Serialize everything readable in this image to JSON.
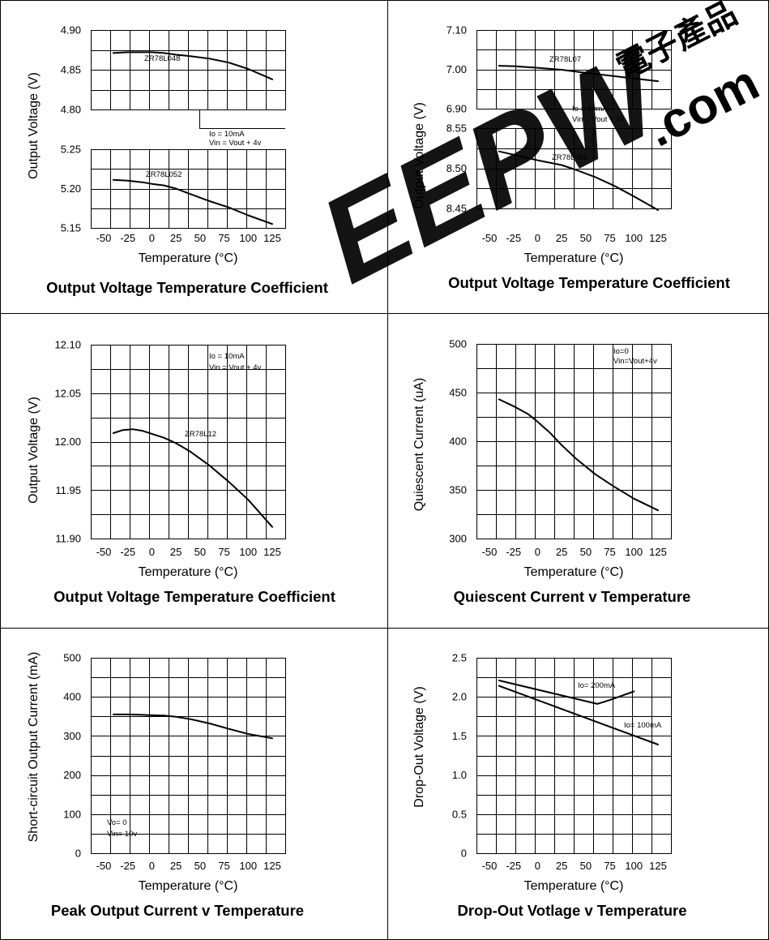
{
  "watermark": {
    "text": "EEPW",
    "suffix": ".com",
    "chinese": "電子產品",
    "color": "#e31b23"
  },
  "chart_data": [
    {
      "type": "line",
      "title": "Output Voltage Temperature Coefficient",
      "xlabel": "Temperature (°C)",
      "ylabel": "Output Voltage (V)",
      "x_ticks": [
        "-50",
        "-25",
        "0",
        "25",
        "50",
        "75",
        "100",
        "125"
      ],
      "xlim": [
        -50,
        125
      ],
      "grid": true,
      "panels": [
        {
          "ylim": [
            4.8,
            4.9
          ],
          "y_ticks": [
            "4.90",
            "4.85",
            "4.80"
          ],
          "series": [
            {
              "name": "ZR78L048",
              "color": "#000000",
              "x": [
                -40,
                -25,
                -10,
                0,
                12.5,
                25,
                40,
                60,
                80,
                100,
                125
              ],
              "y": [
                4.871,
                4.872,
                4.872,
                4.872,
                4.871,
                4.869,
                4.867,
                4.864,
                4.859,
                4.851,
                4.838
              ]
            }
          ],
          "annotations": [
            "Io = 10mA",
            "Vin = Vout + 4v"
          ]
        },
        {
          "ylim": [
            5.15,
            5.25
          ],
          "y_ticks": [
            "5.25",
            "5.20",
            "5.15"
          ],
          "series": [
            {
              "name": "ZR78L052",
              "color": "#000000",
              "x": [
                -40,
                -25,
                -10,
                0,
                12.5,
                25,
                40,
                60,
                80,
                100,
                125
              ],
              "y": [
                5.211,
                5.21,
                5.208,
                5.206,
                5.204,
                5.2,
                5.193,
                5.184,
                5.176,
                5.166,
                5.155
              ]
            }
          ]
        }
      ]
    },
    {
      "type": "line",
      "title": "Output Voltage Temperature Coefficient",
      "xlabel": "Temperature (°C)",
      "ylabel": "Output Voltage (V)",
      "x_ticks": [
        "-50",
        "-25",
        "0",
        "25",
        "50",
        "75",
        "100",
        "125"
      ],
      "xlim": [
        -50,
        125
      ],
      "grid": true,
      "panels": [
        {
          "ylim": [
            6.9,
            7.1
          ],
          "y_ticks": [
            "7.10",
            "7.00",
            "6.90"
          ],
          "series": [
            {
              "name": "ZR78L07",
              "color": "#000000",
              "x": [
                -40,
                -25,
                0,
                25,
                50,
                75,
                100,
                125
              ],
              "y": [
                7.009,
                7.008,
                7.004,
                6.999,
                6.991,
                6.984,
                6.977,
                6.97
              ]
            }
          ],
          "annotations": [
            "Io = 10mA",
            "Vin = Vout + 4v"
          ]
        },
        {
          "ylim": [
            8.45,
            8.55
          ],
          "y_ticks": [
            "8.55",
            "8.50",
            "8.45"
          ],
          "series": [
            {
              "name": "ZR78L085",
              "color": "#000000",
              "x": [
                -40,
                -25,
                0,
                25,
                40,
                60,
                80,
                100,
                125
              ],
              "y": [
                8.521,
                8.517,
                8.51,
                8.504,
                8.498,
                8.489,
                8.478,
                8.465,
                8.448
              ]
            }
          ]
        }
      ]
    },
    {
      "type": "line",
      "title": "Output Voltage Temperature Coefficient",
      "xlabel": "Temperature (°C)",
      "ylabel": "Output Voltage (V)",
      "x_ticks": [
        "-50",
        "-25",
        "0",
        "25",
        "50",
        "75",
        "100",
        "125"
      ],
      "xlim": [
        -50,
        125
      ],
      "ylim": [
        11.875,
        12.125
      ],
      "y_ticks": [
        "12.10",
        "12.05",
        "12.00",
        "11.95",
        "11.90"
      ],
      "grid": true,
      "series": [
        {
          "name": "ZR78L12",
          "color": "#000000",
          "x": [
            -40,
            -30,
            -20,
            -10,
            0,
            12.5,
            25,
            40,
            60,
            80,
            100,
            125
          ],
          "y": [
            12.011,
            12.015,
            12.016,
            12.014,
            12.01,
            12.005,
            11.998,
            11.987,
            11.969,
            11.948,
            11.925,
            11.89
          ]
        }
      ],
      "annotations": [
        "Io = 10mA",
        "Vin = Vout + 4v"
      ]
    },
    {
      "type": "line",
      "title": "Quiescent Current v Temperature",
      "xlabel": "Temperature (°C)",
      "ylabel": "Quiescent Current (uA)",
      "x_ticks": [
        "-50",
        "-25",
        "0",
        "25",
        "50",
        "75",
        "100",
        "125"
      ],
      "xlim": [
        -50,
        125
      ],
      "ylim": [
        300,
        500
      ],
      "y_ticks": [
        "500",
        "450",
        "400",
        "350",
        "300"
      ],
      "grid": true,
      "series": [
        {
          "name": "",
          "color": "#000000",
          "x": [
            -40,
            -25,
            -10,
            0,
            12.5,
            25,
            40,
            60,
            80,
            100,
            125
          ],
          "y": [
            443,
            436,
            428,
            420,
            409,
            396,
            382,
            366,
            353,
            341,
            329
          ]
        }
      ],
      "annotations": [
        "Io=0",
        "Vin=Vout+4v"
      ]
    },
    {
      "type": "line",
      "title": "Peak Output Current v Temperature",
      "xlabel": "Temperature (°C)",
      "ylabel": "Short-circuit Output Current (mA)",
      "x_ticks": [
        "-50",
        "-25",
        "0",
        "25",
        "50",
        "75",
        "100",
        "125"
      ],
      "xlim": [
        -50,
        125
      ],
      "ylim": [
        0,
        500
      ],
      "y_ticks": [
        "500",
        "400",
        "300",
        "200",
        "100",
        "0"
      ],
      "grid": true,
      "series": [
        {
          "name": "",
          "color": "#000000",
          "x": [
            -40,
            -25,
            -10,
            0,
            12.5,
            25,
            40,
            60,
            80,
            100,
            125
          ],
          "y": [
            355,
            355,
            354,
            353,
            352,
            349,
            343,
            332,
            318,
            305,
            294
          ]
        }
      ],
      "annotations": [
        "Vo= 0",
        "Vin= 10v"
      ]
    },
    {
      "type": "line",
      "title": "Drop-Out Votlage v Temperature",
      "xlabel": "Temperature (°C)",
      "ylabel": "Drop-Out Voltage (V)",
      "x_ticks": [
        "-50",
        "-25",
        "0",
        "25",
        "50",
        "75",
        "100",
        "125"
      ],
      "xlim": [
        -50,
        125
      ],
      "ylim": [
        0,
        2.5
      ],
      "y_ticks": [
        "2.5",
        "2.0",
        "1.5",
        "1.0",
        "0.5",
        "0"
      ],
      "grid": true,
      "series": [
        {
          "name": "Io= 200mA",
          "color": "#000000",
          "x": [
            -40,
            62,
            75,
            100
          ],
          "y": [
            2.21,
            1.91,
            1.96,
            2.07
          ]
        },
        {
          "name": "Io= 100mA",
          "color": "#000000",
          "x": [
            -40,
            125
          ],
          "y": [
            2.14,
            1.39
          ]
        }
      ]
    }
  ]
}
